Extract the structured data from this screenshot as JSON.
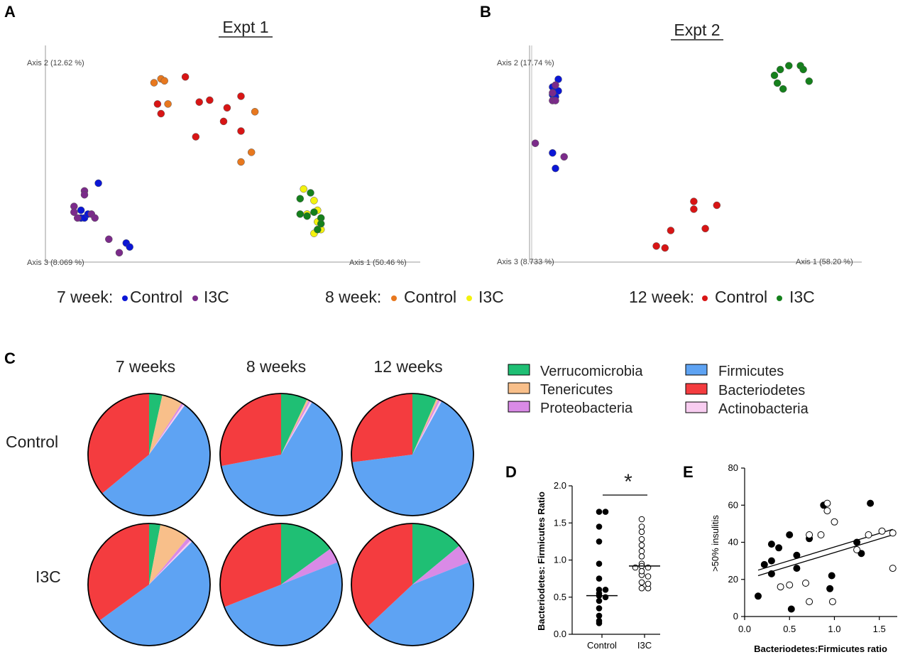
{
  "panels": [
    {
      "letter": "A"
    },
    {
      "letter": "B"
    },
    {
      "letter": "C"
    },
    {
      "letter": "D"
    },
    {
      "letter": "E"
    }
  ],
  "colors": {
    "c7": "#0b16d6",
    "i7": "#7b2b8a",
    "c8": "#e8781e",
    "i8": "#f3f20e",
    "c12": "#d81515",
    "i12": "#15801c",
    "verruco": "#1fbf74",
    "teneri": "#f8bf8a",
    "proteo": "#d98ae6",
    "firmi": "#5ea3f3",
    "bacteroid": "#f43c3f",
    "actino": "#f8cdf0"
  },
  "legendAB": [
    {
      "prefix": "7 week:",
      "items": [
        {
          "label": "Control",
          "color": "#0b16d6"
        },
        {
          "label": "I3C",
          "color": "#7b2b8a"
        }
      ]
    },
    {
      "prefix": "8 week:",
      "items": [
        {
          "label": "Control",
          "color": "#e8781e"
        },
        {
          "label": "I3C",
          "color": "#f3f20e"
        }
      ]
    },
    {
      "prefix": "12 week:",
      "items": [
        {
          "label": "Control",
          "color": "#d81515"
        },
        {
          "label": "I3C",
          "color": "#15801c"
        }
      ]
    }
  ],
  "legendC": [
    {
      "label": "Verrucomicrobia",
      "color": "#1fbf74"
    },
    {
      "label": "Tenericutes",
      "color": "#f8bf8a"
    },
    {
      "label": "Proteobacteria",
      "color": "#d98ae6"
    },
    {
      "label": "Firmicutes",
      "color": "#5ea3f3"
    },
    {
      "label": "Bacteriodetes",
      "color": "#f43c3f"
    },
    {
      "label": "Actinobacteria",
      "color": "#f8cdf0"
    }
  ],
  "chart_data": [
    {
      "id": "A",
      "type": "scatter",
      "title": "Expt 1",
      "axis_labels": {
        "axis2": "Axis 2 (12.62 %)",
        "axis3": "Axis 3 (8.069 %)",
        "axis1": "Axis 1 (50.46 %)"
      },
      "xlim": [
        0,
        100
      ],
      "ylim": [
        0,
        100
      ],
      "series": [
        {
          "name": "7 week Control",
          "color": "#0b16d6",
          "points": [
            [
              14,
              39
            ],
            [
              9,
              25
            ],
            [
              9,
              21
            ],
            [
              10,
              21
            ],
            [
              11,
              23
            ],
            [
              22,
              8
            ],
            [
              23,
              6
            ]
          ]
        },
        {
          "name": "7 week I3C",
          "color": "#7b2b8a",
          "points": [
            [
              10,
              35
            ],
            [
              10,
              33
            ],
            [
              7,
              27
            ],
            [
              7,
              24
            ],
            [
              8,
              21
            ],
            [
              12,
              23
            ],
            [
              13,
              21
            ],
            [
              17,
              10
            ],
            [
              20,
              3
            ]
          ]
        },
        {
          "name": "8 week Control",
          "color": "#e8781e",
          "points": [
            [
              30,
              91
            ],
            [
              32,
              93
            ],
            [
              33,
              92
            ],
            [
              34,
              80
            ],
            [
              59,
              76
            ],
            [
              58,
              55
            ],
            [
              55,
              50
            ]
          ]
        },
        {
          "name": "8 week I3C",
          "color": "#f3f20e",
          "points": [
            [
              73,
              36
            ],
            [
              76,
              30
            ],
            [
              74,
              23
            ],
            [
              77,
              25
            ],
            [
              77,
              19
            ],
            [
              78,
              15
            ],
            [
              76,
              13
            ]
          ]
        },
        {
          "name": "12 week Control",
          "color": "#d81515",
          "points": [
            [
              39,
              94
            ],
            [
              31,
              80
            ],
            [
              32,
              75
            ],
            [
              43,
              81
            ],
            [
              46,
              82
            ],
            [
              51,
              78
            ],
            [
              55,
              84
            ],
            [
              50,
              71
            ],
            [
              42,
              63
            ],
            [
              55,
              66
            ]
          ]
        },
        {
          "name": "12 week I3C",
          "color": "#15801c",
          "points": [
            [
              72,
              31
            ],
            [
              75,
              34
            ],
            [
              72,
              23
            ],
            [
              74,
              22
            ],
            [
              76,
              24
            ],
            [
              78,
              21
            ],
            [
              78,
              18
            ],
            [
              77,
              15
            ]
          ]
        }
      ]
    },
    {
      "id": "B",
      "type": "scatter",
      "title": "Expt 2",
      "axis_labels": {
        "axis2": "Axis 2 (17.74 %)",
        "axis3": "Axis 3 (8.733 %)",
        "axis1": "Axis 1 (58.20 %)"
      },
      "xlim": [
        0,
        100
      ],
      "ylim": [
        0,
        100
      ],
      "series": [
        {
          "name": "7 week Control",
          "color": "#0b16d6",
          "points": [
            [
              9,
              91
            ],
            [
              7,
              87
            ],
            [
              8,
              85
            ],
            [
              9,
              85
            ],
            [
              7,
              83
            ],
            [
              8,
              82
            ],
            [
              7,
              53
            ],
            [
              8,
              45
            ]
          ]
        },
        {
          "name": "7 week I3C",
          "color": "#7b2b8a",
          "points": [
            [
              8,
              88
            ],
            [
              7,
              84
            ],
            [
              7,
              80
            ],
            [
              8,
              80
            ],
            [
              1,
              58
            ],
            [
              11,
              51
            ]
          ]
        },
        {
          "name": "12 week Control",
          "color": "#d81515",
          "points": [
            [
              56,
              28
            ],
            [
              56,
              24
            ],
            [
              64,
              26
            ],
            [
              48,
              13
            ],
            [
              60,
              14
            ],
            [
              43,
              5
            ],
            [
              46,
              4
            ]
          ]
        },
        {
          "name": "12 week I3C",
          "color": "#15801c",
          "points": [
            [
              89,
              98
            ],
            [
              93,
              98
            ],
            [
              94,
              96
            ],
            [
              86,
              96
            ],
            [
              84,
              93
            ],
            [
              96,
              90
            ],
            [
              85,
              89
            ],
            [
              87,
              86
            ]
          ]
        }
      ]
    },
    {
      "id": "C",
      "type": "pie",
      "column_labels": [
        "7 weeks",
        "8 weeks",
        "12 weeks"
      ],
      "row_labels": [
        "Control",
        "I3C"
      ],
      "phyla": [
        "Verrucomicrobia",
        "Tenericutes",
        "Proteobacteria",
        "Firmicutes",
        "Bacteriodetes",
        "Actinobacteria"
      ],
      "order": [
        "Verrucomicrobia",
        "Tenericutes",
        "Proteobacteria",
        "Actinobacteria",
        "Firmicutes",
        "Bacteriodetes"
      ],
      "pies": [
        {
          "row": "Control",
          "col": "7 weeks",
          "values": {
            "Verrucomicrobia": 3.5,
            "Tenericutes": 5.5,
            "Proteobacteria": 0.5,
            "Actinobacteria": 0.5,
            "Firmicutes": 54,
            "Bacteriodetes": 36
          }
        },
        {
          "row": "Control",
          "col": "8 weeks",
          "values": {
            "Verrucomicrobia": 7,
            "Tenericutes": 0.5,
            "Proteobacteria": 0.5,
            "Actinobacteria": 0.5,
            "Firmicutes": 63.5,
            "Bacteriodetes": 28
          }
        },
        {
          "row": "Control",
          "col": "12 weeks",
          "values": {
            "Verrucomicrobia": 6.5,
            "Tenericutes": 0.5,
            "Proteobacteria": 0.5,
            "Actinobacteria": 0.5,
            "Firmicutes": 65,
            "Bacteriodetes": 27
          }
        },
        {
          "row": "I3C",
          "col": "7 weeks",
          "values": {
            "Verrucomicrobia": 3,
            "Tenericutes": 8,
            "Proteobacteria": 1,
            "Actinobacteria": 0.5,
            "Firmicutes": 52.5,
            "Bacteriodetes": 35
          }
        },
        {
          "row": "I3C",
          "col": "8 weeks",
          "values": {
            "Verrucomicrobia": 15,
            "Tenericutes": 0,
            "Proteobacteria": 4,
            "Actinobacteria": 0,
            "Firmicutes": 50,
            "Bacteriodetes": 31
          }
        },
        {
          "row": "I3C",
          "col": "12 weeks",
          "values": {
            "Verrucomicrobia": 14,
            "Tenericutes": 0,
            "Proteobacteria": 5,
            "Actinobacteria": 0,
            "Firmicutes": 44,
            "Bacteriodetes": 37
          }
        }
      ]
    },
    {
      "id": "D",
      "type": "scatter",
      "ylabel": "Bacteriodetes: Firmicutes Ratio",
      "categories": [
        "Control",
        "I3C"
      ],
      "ylim": [
        0,
        2.0
      ],
      "yticks": [
        "0.0",
        "0.5",
        "1.0",
        "1.5",
        "2.0"
      ],
      "significance": "*",
      "groups": [
        {
          "name": "Control",
          "filled": true,
          "median": 0.52,
          "values": [
            1.65,
            1.65,
            1.45,
            1.25,
            0.95,
            0.75,
            0.6,
            0.55,
            0.52,
            0.5,
            0.45,
            0.35,
            0.25,
            0.18,
            0.15,
            0.6
          ]
        },
        {
          "name": "I3C",
          "filled": false,
          "median": 0.92,
          "values": [
            1.55,
            1.45,
            1.38,
            1.28,
            1.2,
            1.12,
            1.05,
            0.95,
            0.92,
            0.9,
            0.9,
            0.8,
            0.78,
            0.7,
            0.62,
            0.62,
            0.85,
            0.68
          ]
        }
      ]
    },
    {
      "id": "E",
      "type": "scatter",
      "xlabel": "Bacteriodetes:Firmicutes ratio",
      "ylabel": ">50% insulitis",
      "xlim": [
        0,
        1.7
      ],
      "ylim": [
        0,
        80
      ],
      "xticks": [
        "0.0",
        "0.5",
        "1.0",
        "1.5"
      ],
      "yticks": [
        "0",
        "20",
        "40",
        "60",
        "80"
      ],
      "series": [
        {
          "name": "Control",
          "filled": true,
          "points": [
            [
              0.15,
              11
            ],
            [
              0.22,
              28
            ],
            [
              0.3,
              30
            ],
            [
              0.3,
              23
            ],
            [
              0.3,
              39
            ],
            [
              0.38,
              37
            ],
            [
              0.5,
              44
            ],
            [
              0.52,
              4
            ],
            [
              0.58,
              33
            ],
            [
              0.58,
              26
            ],
            [
              0.72,
              42
            ],
            [
              0.88,
              60
            ],
            [
              0.95,
              15
            ],
            [
              0.97,
              22
            ],
            [
              1.25,
              40
            ],
            [
              1.3,
              34
            ],
            [
              1.4,
              61
            ]
          ]
        },
        {
          "name": "I3C",
          "filled": false,
          "points": [
            [
              0.4,
              16
            ],
            [
              0.5,
              17
            ],
            [
              0.68,
              18
            ],
            [
              0.72,
              8
            ],
            [
              0.72,
              44
            ],
            [
              0.85,
              44
            ],
            [
              0.92,
              61
            ],
            [
              0.92,
              57
            ],
            [
              0.98,
              8
            ],
            [
              1.0,
              51
            ],
            [
              1.25,
              36
            ],
            [
              1.38,
              44
            ],
            [
              1.53,
              46
            ],
            [
              1.65,
              45
            ],
            [
              1.65,
              26
            ]
          ]
        }
      ],
      "fits": [
        {
          "name": "Control fit",
          "x": [
            0.15,
            1.65
          ],
          "y": [
            25,
            47
          ]
        },
        {
          "name": "I3C fit",
          "x": [
            0.15,
            1.65
          ],
          "y": [
            22,
            44
          ]
        }
      ]
    }
  ]
}
